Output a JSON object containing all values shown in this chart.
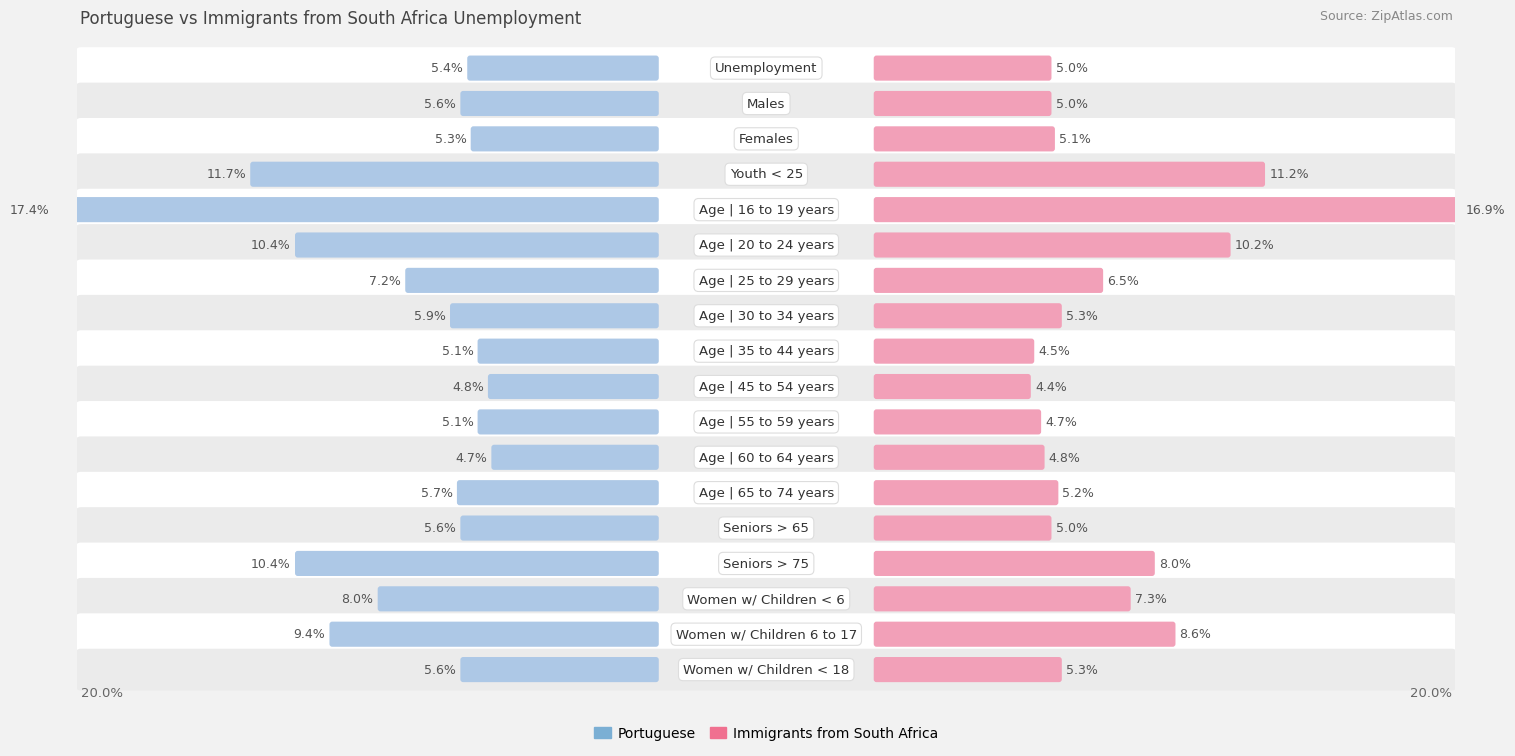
{
  "title": "Portuguese vs Immigrants from South Africa Unemployment",
  "source": "Source: ZipAtlas.com",
  "categories": [
    "Unemployment",
    "Males",
    "Females",
    "Youth < 25",
    "Age | 16 to 19 years",
    "Age | 20 to 24 years",
    "Age | 25 to 29 years",
    "Age | 30 to 34 years",
    "Age | 35 to 44 years",
    "Age | 45 to 54 years",
    "Age | 55 to 59 years",
    "Age | 60 to 64 years",
    "Age | 65 to 74 years",
    "Seniors > 65",
    "Seniors > 75",
    "Women w/ Children < 6",
    "Women w/ Children 6 to 17",
    "Women w/ Children < 18"
  ],
  "portuguese": [
    5.4,
    5.6,
    5.3,
    11.7,
    17.4,
    10.4,
    7.2,
    5.9,
    5.1,
    4.8,
    5.1,
    4.7,
    5.7,
    5.6,
    10.4,
    8.0,
    9.4,
    5.6
  ],
  "immigrants": [
    5.0,
    5.0,
    5.1,
    11.2,
    16.9,
    10.2,
    6.5,
    5.3,
    4.5,
    4.4,
    4.7,
    4.8,
    5.2,
    5.0,
    8.0,
    7.3,
    8.6,
    5.3
  ],
  "max_val": 20.0,
  "blue_color": "#adc8e6",
  "pink_color": "#f2a0b8",
  "blue_legend": "#7bafd4",
  "pink_legend": "#f07090",
  "bg_color": "#f2f2f2",
  "row_bg_even": "#ffffff",
  "row_bg_odd": "#ebebeb",
  "label_fontsize": 9.5,
  "value_fontsize": 9.0,
  "title_fontsize": 12,
  "source_fontsize": 9
}
